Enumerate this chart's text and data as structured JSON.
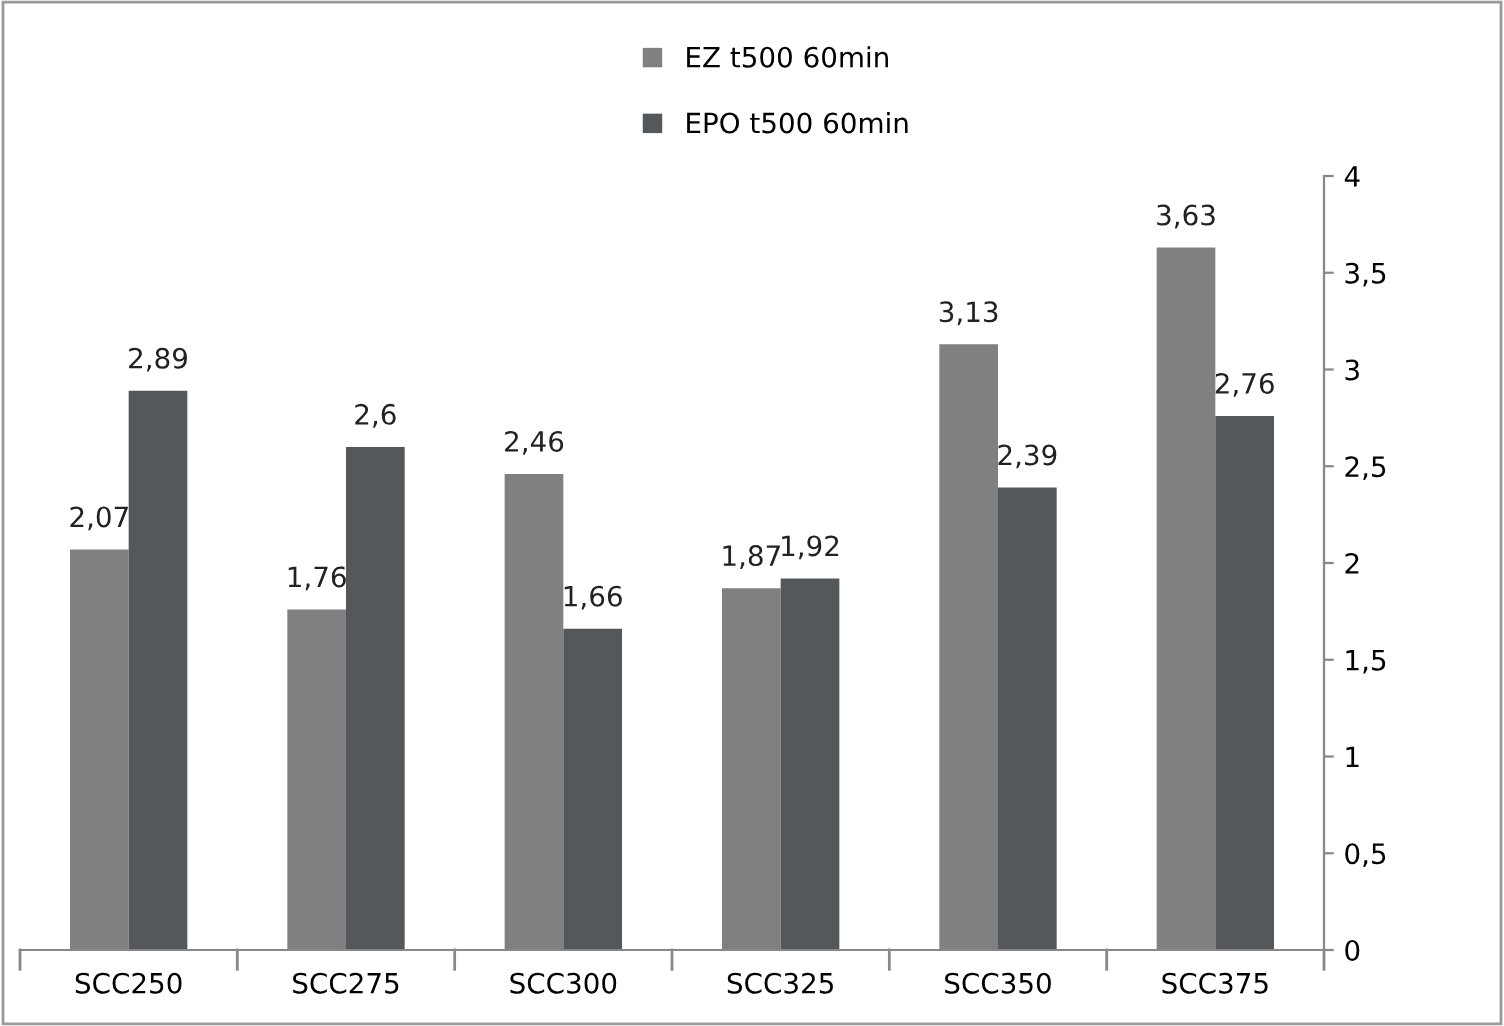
{
  "chart_data": {
    "type": "bar",
    "categories": [
      "SCC250",
      "SCC275",
      "SCC300",
      "SCC325",
      "SCC350",
      "SCC375"
    ],
    "series": [
      {
        "name": "EZ t500 60min",
        "color": "#808083",
        "values": [
          2.07,
          1.76,
          2.46,
          1.87,
          3.13,
          3.63
        ],
        "value_labels": [
          "2,07",
          "1,76",
          "2,46",
          "1,87",
          "3,13",
          "3,63"
        ]
      },
      {
        "name": "EPO t500 60min",
        "color": "#55585b",
        "values": [
          2.89,
          2.6,
          1.66,
          1.92,
          2.39,
          2.76
        ],
        "value_labels": [
          "2,89",
          "2,6",
          "1,66",
          "1,92",
          "2,39",
          "2,76"
        ]
      }
    ],
    "ylim": [
      0,
      4
    ],
    "yticks": [
      0,
      {
        "value": 0.5,
        "label": "0,5"
      },
      1,
      {
        "value": 1.5,
        "label": "1,5"
      },
      2,
      {
        "value": 2.5,
        "label": "2,5"
      },
      3,
      {
        "value": 3.5,
        "label": "3,5"
      },
      4
    ],
    "grid": false,
    "legend": "top"
  }
}
